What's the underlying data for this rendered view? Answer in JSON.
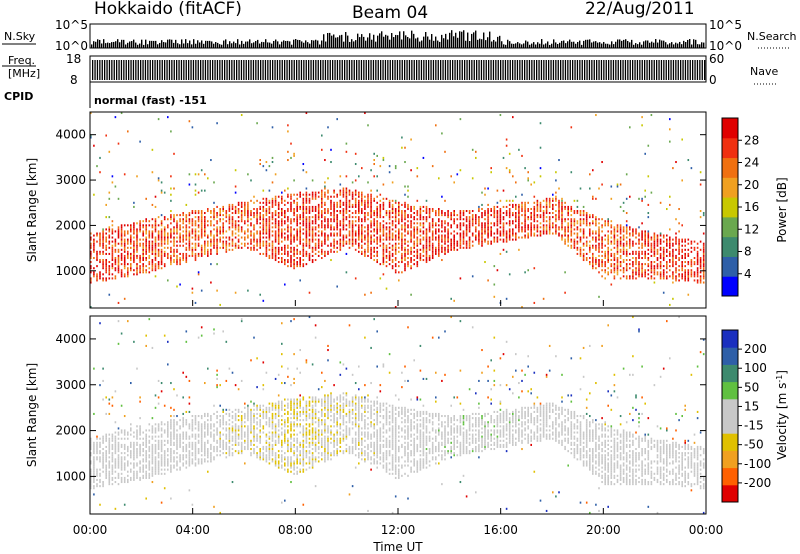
{
  "header": {
    "station": "Hokkaido (fitACF)",
    "beam": "Beam 04",
    "date": "22/Aug/2011"
  },
  "panels": {
    "nsky_label": "N.Sky",
    "nsky_ticks": [
      "10^5",
      "10^0"
    ],
    "nsearch_label": "N.Search",
    "nsearch_ticks": [
      "10^5",
      "10^0"
    ],
    "freq_label_line1": "Freq.",
    "freq_label_line2": "[MHz]",
    "freq_ticks": [
      "18",
      "8"
    ],
    "nave_label": "Nave",
    "nave_ticks": [
      "60",
      "0"
    ],
    "cpid_label": "CPID",
    "cpid_text": "normal (fast) -151",
    "ylabel": "Slant Range [km]",
    "yticks": [
      "4000",
      "3000",
      "2000",
      "1000"
    ],
    "xlabel": "Time UT",
    "xticks": [
      "00:00",
      "04:00",
      "08:00",
      "12:00",
      "16:00",
      "20:00",
      "00:00"
    ]
  },
  "colorbars": {
    "power_label": "Power [dB]",
    "power_ticks": [
      "28",
      "24",
      "20",
      "16",
      "12",
      "8",
      "4"
    ],
    "velocity_label": "Velocity [m s",
    "velocity_sup": "-1",
    "velocity_close": "]",
    "velocity_ticks": [
      "200",
      "100",
      "50",
      "15",
      "-15",
      "-50",
      "-100",
      "-200"
    ],
    "power_colors": [
      "#0000ff",
      "#2e5fa8",
      "#3d8a6e",
      "#6aa84f",
      "#c8c800",
      "#f0a020",
      "#f07010",
      "#f03010",
      "#e00000"
    ],
    "velocity_colors": [
      "#e00000",
      "#ff6000",
      "#f0a020",
      "#e0c000",
      "#c8c8c8",
      "#c8c8c8",
      "#60c040",
      "#3d8a6e",
      "#2e5fa8",
      "#1a2fbf"
    ]
  },
  "chart_data": [
    {
      "type": "heatmap",
      "title": "Power",
      "x_range_hours": [
        0,
        24
      ],
      "y_range_km": [
        180,
        4500
      ],
      "color_label": "Power [dB]",
      "color_range": [
        0,
        30
      ],
      "x": [
        0,
        2,
        4,
        6,
        8,
        10,
        12,
        14,
        16,
        18,
        20,
        22,
        24
      ],
      "echo_band_km": [
        [
          700,
          1800
        ],
        [
          900,
          2100
        ],
        [
          1200,
          2300
        ],
        [
          1500,
          2500
        ],
        [
          1000,
          2700
        ],
        [
          1500,
          2800
        ],
        [
          900,
          2500
        ],
        [
          1400,
          2300
        ],
        [
          1600,
          2400
        ],
        [
          1800,
          2600
        ],
        [
          800,
          2100
        ],
        [
          800,
          1800
        ],
        [
          700,
          1600
        ]
      ],
      "peak_power_db": [
        28,
        26,
        24,
        26,
        28,
        28,
        26,
        28,
        28,
        26,
        24,
        28,
        28
      ]
    },
    {
      "type": "heatmap",
      "title": "Velocity",
      "x_range_hours": [
        0,
        24
      ],
      "y_range_km": [
        180,
        4500
      ],
      "color_label": "Velocity [m s-1]",
      "color_range": [
        -200,
        200
      ],
      "x": [
        0,
        2,
        4,
        6,
        8,
        10,
        12,
        14,
        16,
        18,
        20,
        22,
        24
      ],
      "echo_band_km": [
        [
          700,
          1800
        ],
        [
          900,
          2100
        ],
        [
          1200,
          2300
        ],
        [
          1500,
          2500
        ],
        [
          1000,
          2700
        ],
        [
          1500,
          2800
        ],
        [
          900,
          2500
        ],
        [
          1400,
          2300
        ],
        [
          1600,
          2400
        ],
        [
          1800,
          2600
        ],
        [
          800,
          2100
        ],
        [
          800,
          1800
        ],
        [
          700,
          1600
        ]
      ],
      "typical_velocity_ms": [
        0,
        0,
        0,
        -20,
        -40,
        -20,
        0,
        10,
        10,
        0,
        0,
        0,
        0
      ]
    }
  ]
}
